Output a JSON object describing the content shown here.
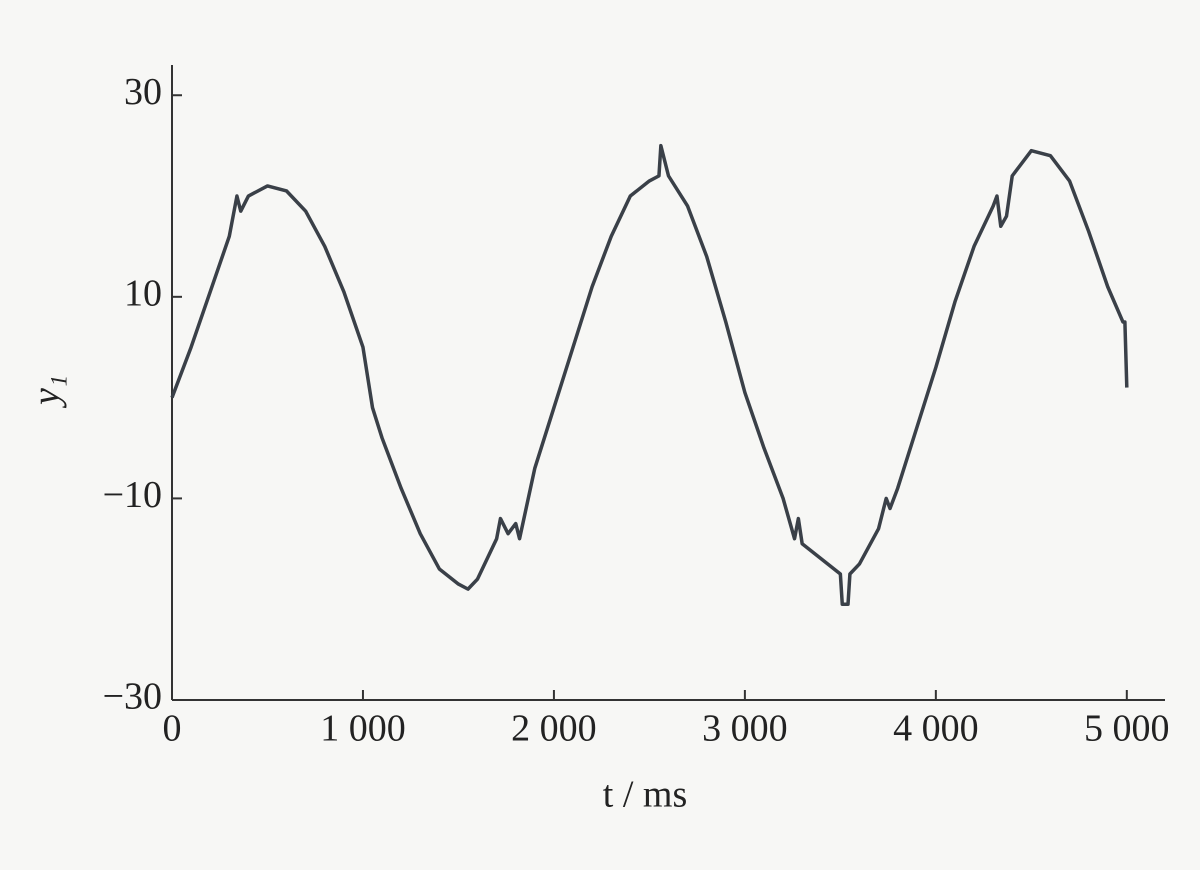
{
  "chart_data": {
    "type": "line",
    "x_label": "t / ms",
    "y_label": "y₁",
    "x": [
      0,
      100,
      200,
      300,
      340,
      360,
      400,
      500,
      600,
      700,
      800,
      900,
      1000,
      1050,
      1100,
      1200,
      1300,
      1400,
      1500,
      1550,
      1600,
      1700,
      1720,
      1760,
      1800,
      1820,
      1900,
      2000,
      2100,
      2200,
      2300,
      2400,
      2500,
      2550,
      2560,
      2600,
      2700,
      2800,
      2900,
      3000,
      3100,
      3200,
      3260,
      3280,
      3300,
      3400,
      3500,
      3510,
      3540,
      3550,
      3600,
      3700,
      3740,
      3760,
      3800,
      3900,
      4000,
      4100,
      4200,
      4300,
      4320,
      4340,
      4370,
      4400,
      4500,
      4600,
      4700,
      4800,
      4900,
      4980,
      4990,
      5000
    ],
    "series": [
      {
        "color": "#3a4048",
        "values": [
          0,
          5,
          10.5,
          16,
          20,
          18.5,
          20,
          21,
          20.5,
          18.5,
          15,
          10.5,
          5,
          -1,
          -4,
          -9,
          -13.5,
          -17,
          -18.5,
          -19,
          -18,
          -14,
          -12,
          -13.5,
          -12.5,
          -14,
          -7,
          -1,
          5,
          11,
          16,
          20,
          21.5,
          22,
          25,
          22,
          19,
          14,
          7.5,
          0.5,
          -5,
          -10,
          -14,
          -12,
          -14.5,
          -16,
          -17.5,
          -20.5,
          -20.5,
          -17.5,
          -16.5,
          -13,
          -10,
          -11,
          -9,
          -3,
          3,
          9.5,
          15,
          19,
          20,
          17,
          18,
          22,
          24.5,
          24,
          21.5,
          16.5,
          11,
          7.5,
          7.5,
          1
        ]
      }
    ],
    "xlim": [
      0,
      5200
    ],
    "ylim": [
      -30,
      33
    ],
    "xticks": [
      0,
      {
        "value": 1000,
        "label": "1 000"
      },
      {
        "value": 2000,
        "label": "2 000"
      },
      {
        "value": 3000,
        "label": "3 000"
      },
      {
        "value": 4000,
        "label": "4 000"
      },
      {
        "value": 5000,
        "label": "5 000"
      }
    ],
    "yticks": [
      {
        "value": -30,
        "label": "−30"
      },
      {
        "value": -10,
        "label": "−10"
      },
      10,
      30
    ]
  }
}
